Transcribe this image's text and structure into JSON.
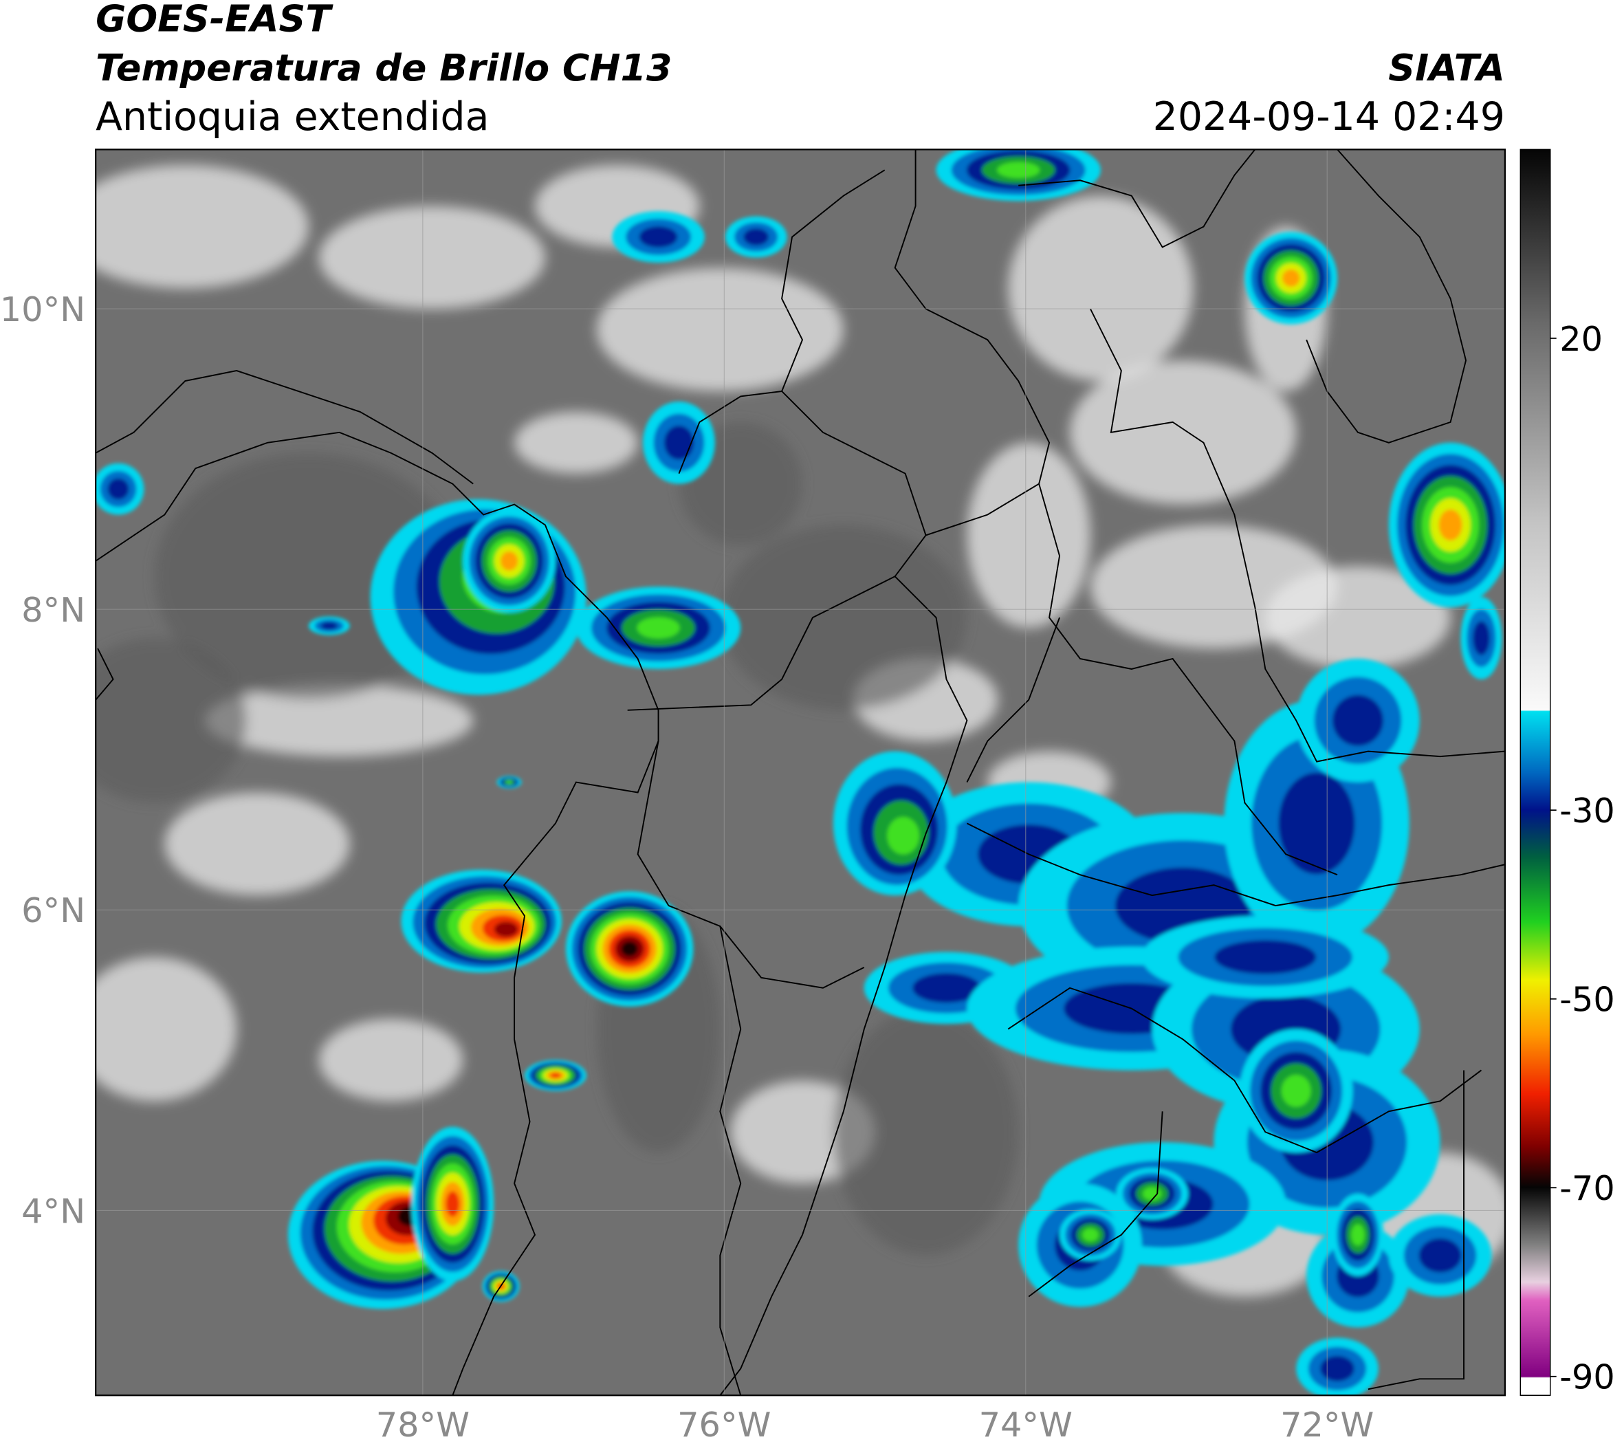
{
  "header": {
    "title": "GOES-EAST",
    "product": "Temperatura de Brillo CH13",
    "region": "Antioquia extendida",
    "source": "SIATA",
    "datetime": "2024-09-14 02:49"
  },
  "map": {
    "lonlim": [
      -80.17,
      -70.82
    ],
    "latlim": [
      2.77,
      11.06
    ],
    "yticks": [
      {
        "value": 10,
        "label": "10°N"
      },
      {
        "value": 8,
        "label": "8°N"
      },
      {
        "value": 6,
        "label": "6°N"
      },
      {
        "value": 4,
        "label": "4°N"
      }
    ],
    "xticks": [
      {
        "value": -78,
        "label": "78°W"
      },
      {
        "value": -76,
        "label": "76°W"
      },
      {
        "value": -74,
        "label": "74°W"
      },
      {
        "value": -72,
        "label": "72°W"
      }
    ],
    "grid": true
  },
  "colorbar": {
    "lim": [
      -92,
      40
    ],
    "ticks": [
      20,
      -30,
      -50,
      -70,
      -90
    ]
  }
}
